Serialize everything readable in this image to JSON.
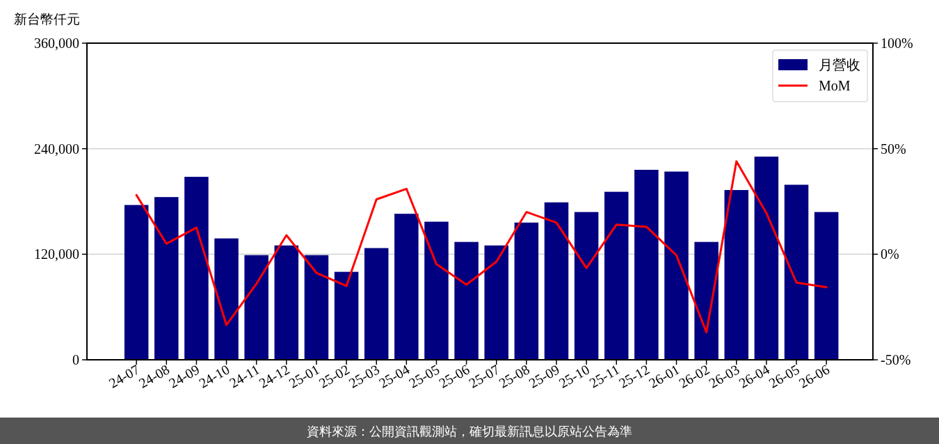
{
  "chart_data": {
    "type": "bar",
    "ylabel": "新台幣仟元",
    "categories": [
      "24-07",
      "24-08",
      "24-09",
      "24-10",
      "24-11",
      "24-12",
      "25-01",
      "25-02",
      "25-03",
      "25-04",
      "25-05",
      "25-06",
      "25-07",
      "25-08",
      "25-09",
      "25-10",
      "25-11",
      "25-12",
      "26-01",
      "26-02",
      "26-03",
      "26-04",
      "26-05",
      "26-06"
    ],
    "series": [
      {
        "name": "月營收",
        "type": "bar",
        "color": "#000080",
        "values": [
          176000,
          185000,
          208000,
          138000,
          119000,
          130000,
          119000,
          100000,
          127000,
          166000,
          157000,
          134000,
          130000,
          156000,
          179000,
          168000,
          191000,
          216000,
          214000,
          134000,
          193000,
          231000,
          199000,
          168000
        ]
      },
      {
        "name": "MoM",
        "type": "line",
        "axis": "y2",
        "color": "#ff0000",
        "values": [
          28,
          5,
          12.6,
          -33.5,
          -14,
          9,
          -8.8,
          -15,
          26,
          31,
          -4.7,
          -14.4,
          -3.5,
          20,
          15,
          -6.5,
          14,
          13,
          -0.5,
          -37,
          44,
          19.5,
          -13.4,
          -15.6
        ]
      }
    ],
    "ylim": [
      0,
      360000
    ],
    "yticks": [
      {
        "value": 0,
        "label": "0"
      },
      {
        "value": 120000,
        "label": "120,000"
      },
      {
        "value": 240000,
        "label": "240,000"
      },
      {
        "value": 360000,
        "label": "360,000"
      }
    ],
    "y2lim": [
      -50,
      100
    ],
    "y2ticks": [
      {
        "value": -50,
        "label": "-50%"
      },
      {
        "value": 0,
        "label": "0%"
      },
      {
        "value": 50,
        "label": "50%"
      },
      {
        "value": 100,
        "label": "100%"
      }
    ],
    "grid": "y",
    "legend": "top right",
    "annotations": [
      "資料來源：公開資訊觀測站，確切最新訊息以原站公告為準"
    ]
  }
}
